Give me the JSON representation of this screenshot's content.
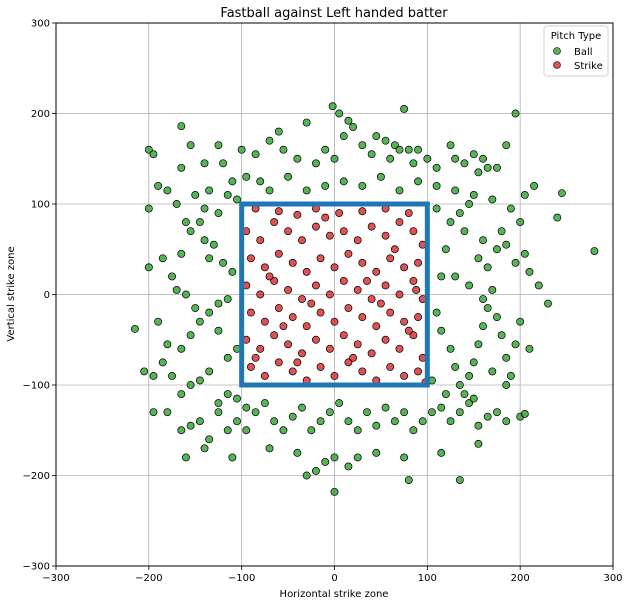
{
  "chart_data": {
    "type": "scatter",
    "title": "Fastball against Left handed batter",
    "xlabel": "Horizontal strike zone",
    "ylabel": "Vertical strike zone",
    "xlim": [
      -300,
      300
    ],
    "ylim": [
      -300,
      300
    ],
    "xticks": [
      -300,
      -200,
      -100,
      0,
      100,
      200,
      300
    ],
    "yticks": [
      -300,
      -200,
      -100,
      0,
      100,
      200,
      300
    ],
    "grid": true,
    "legend": {
      "title": "Pitch Type",
      "placement": "top-right"
    },
    "strike_zone": {
      "x": [
        -100,
        100
      ],
      "y": [
        -100,
        100
      ],
      "color": "#1f77b4"
    },
    "series": [
      {
        "name": "Ball",
        "color": "#2ca02c",
        "points": [
          [
            -200,
            160
          ],
          [
            -195,
            155
          ],
          [
            -165,
            186
          ],
          [
            -155,
            165
          ],
          [
            -165,
            140
          ],
          [
            -140,
            145
          ],
          [
            -120,
            145
          ],
          [
            -125,
            165
          ],
          [
            -100,
            160
          ],
          [
            -85,
            155
          ],
          [
            -70,
            170
          ],
          [
            -55,
            160
          ],
          [
            -40,
            150
          ],
          [
            -20,
            145
          ],
          [
            -10,
            160
          ],
          [
            0,
            150
          ],
          [
            5,
            200
          ],
          [
            10,
            175
          ],
          [
            20,
            185
          ],
          [
            30,
            165
          ],
          [
            40,
            155
          ],
          [
            45,
            175
          ],
          [
            55,
            170
          ],
          [
            65,
            165
          ],
          [
            70,
            160
          ],
          [
            75,
            205
          ],
          [
            80,
            160
          ],
          [
            85,
            145
          ],
          [
            90,
            160
          ],
          [
            100,
            150
          ],
          [
            110,
            140
          ],
          [
            125,
            165
          ],
          [
            130,
            150
          ],
          [
            140,
            145
          ],
          [
            150,
            155
          ],
          [
            155,
            135
          ],
          [
            160,
            150
          ],
          [
            165,
            140
          ],
          [
            175,
            140
          ],
          [
            185,
            165
          ],
          [
            195,
            200
          ],
          [
            -30,
            190
          ],
          [
            -60,
            180
          ],
          [
            -2,
            208
          ],
          [
            15,
            192
          ],
          [
            60,
            150
          ],
          [
            -150,
            110
          ],
          [
            -140,
            95
          ],
          [
            -125,
            90
          ],
          [
            -115,
            110
          ],
          [
            -105,
            105
          ],
          [
            -160,
            80
          ],
          [
            -180,
            115
          ],
          [
            -190,
            120
          ],
          [
            -170,
            100
          ],
          [
            -135,
            115
          ],
          [
            -200,
            95
          ],
          [
            -110,
            125
          ],
          [
            -95,
            130
          ],
          [
            -80,
            125
          ],
          [
            -70,
            115
          ],
          [
            -50,
            130
          ],
          [
            -30,
            115
          ],
          [
            -10,
            120
          ],
          [
            10,
            125
          ],
          [
            30,
            120
          ],
          [
            50,
            130
          ],
          [
            70,
            115
          ],
          [
            90,
            125
          ],
          [
            110,
            120
          ],
          [
            130,
            115
          ],
          [
            150,
            110
          ],
          [
            170,
            105
          ],
          [
            190,
            95
          ],
          [
            205,
            110
          ],
          [
            215,
            120
          ],
          [
            245,
            112
          ],
          [
            240,
            85
          ],
          [
            200,
            80
          ],
          [
            180,
            70
          ],
          [
            160,
            60
          ],
          [
            140,
            70
          ],
          [
            120,
            50
          ],
          [
            110,
            95
          ],
          [
            115,
            20
          ],
          [
            125,
            80
          ],
          [
            135,
            90
          ],
          [
            145,
            100
          ],
          [
            155,
            40
          ],
          [
            165,
            30
          ],
          [
            175,
            50
          ],
          [
            185,
            55
          ],
          [
            195,
            35
          ],
          [
            205,
            45
          ],
          [
            210,
            25
          ],
          [
            220,
            10
          ],
          [
            230,
            -10
          ],
          [
            280,
            48
          ],
          [
            -215,
            -38
          ],
          [
            -205,
            -85
          ],
          [
            -195,
            -90
          ],
          [
            -185,
            -75
          ],
          [
            -175,
            -90
          ],
          [
            -165,
            -60
          ],
          [
            -155,
            -45
          ],
          [
            -145,
            -30
          ],
          [
            -135,
            -20
          ],
          [
            -125,
            -10
          ],
          [
            -115,
            -5
          ],
          [
            -175,
            20
          ],
          [
            -185,
            40
          ],
          [
            -190,
            -30
          ],
          [
            -170,
            5
          ],
          [
            -160,
            0
          ],
          [
            -150,
            -15
          ],
          [
            -140,
            60
          ],
          [
            -130,
            55
          ],
          [
            -120,
            35
          ],
          [
            -110,
            25
          ],
          [
            -165,
            45
          ],
          [
            -155,
            70
          ],
          [
            -145,
            80
          ],
          [
            -135,
            40
          ],
          [
            -125,
            -40
          ],
          [
            -115,
            -70
          ],
          [
            -105,
            -60
          ],
          [
            -200,
            30
          ],
          [
            -180,
            -55
          ],
          [
            -165,
            -110
          ],
          [
            -155,
            -100
          ],
          [
            -145,
            -95
          ],
          [
            -135,
            -85
          ],
          [
            -125,
            -120
          ],
          [
            -115,
            -110
          ],
          [
            -105,
            -115
          ],
          [
            -95,
            -125
          ],
          [
            -195,
            -130
          ],
          [
            -180,
            -130
          ],
          [
            -165,
            -150
          ],
          [
            -155,
            -145
          ],
          [
            -145,
            -140
          ],
          [
            -135,
            -160
          ],
          [
            -125,
            -130
          ],
          [
            -115,
            -150
          ],
          [
            -105,
            -140
          ],
          [
            -95,
            -150
          ],
          [
            -85,
            -130
          ],
          [
            -75,
            -120
          ],
          [
            -65,
            -140
          ],
          [
            -55,
            -150
          ],
          [
            -45,
            -135
          ],
          [
            -35,
            -125
          ],
          [
            -25,
            -150
          ],
          [
            -15,
            -140
          ],
          [
            -5,
            -130
          ],
          [
            5,
            -120
          ],
          [
            15,
            -140
          ],
          [
            25,
            -150
          ],
          [
            35,
            -130
          ],
          [
            45,
            -145
          ],
          [
            55,
            -125
          ],
          [
            65,
            -140
          ],
          [
            75,
            -130
          ],
          [
            85,
            -150
          ],
          [
            95,
            -140
          ],
          [
            105,
            -130
          ],
          [
            115,
            -125
          ],
          [
            125,
            -140
          ],
          [
            135,
            -130
          ],
          [
            145,
            -120
          ],
          [
            155,
            -145
          ],
          [
            165,
            -135
          ],
          [
            175,
            -130
          ],
          [
            185,
            -140
          ],
          [
            200,
            -135
          ],
          [
            205,
            -132
          ],
          [
            -160,
            -180
          ],
          [
            -140,
            -170
          ],
          [
            -110,
            -180
          ],
          [
            -70,
            -170
          ],
          [
            -40,
            -175
          ],
          [
            -30,
            -200
          ],
          [
            -20,
            -195
          ],
          [
            -10,
            -185
          ],
          [
            0,
            -180
          ],
          [
            0,
            -218
          ],
          [
            15,
            -190
          ],
          [
            25,
            -180
          ],
          [
            45,
            -175
          ],
          [
            75,
            -180
          ],
          [
            80,
            -205
          ],
          [
            115,
            -175
          ],
          [
            135,
            -205
          ],
          [
            155,
            -165
          ],
          [
            110,
            -20
          ],
          [
            115,
            -40
          ],
          [
            125,
            -60
          ],
          [
            130,
            -80
          ],
          [
            135,
            -100
          ],
          [
            140,
            -110
          ],
          [
            145,
            -90
          ],
          [
            150,
            -75
          ],
          [
            155,
            -55
          ],
          [
            160,
            -35
          ],
          [
            165,
            -15
          ],
          [
            170,
            5
          ],
          [
            175,
            -25
          ],
          [
            180,
            -45
          ],
          [
            185,
            -70
          ],
          [
            190,
            -90
          ],
          [
            195,
            -55
          ],
          [
            200,
            -30
          ],
          [
            210,
            -60
          ],
          [
            185,
            -100
          ],
          [
            170,
            -85
          ],
          [
            150,
            -115
          ],
          [
            120,
            -110
          ],
          [
            105,
            -95
          ],
          [
            130,
            20
          ],
          [
            145,
            10
          ],
          [
            160,
            -5
          ]
        ]
      },
      {
        "name": "Strike",
        "color": "#d62728",
        "points": [
          [
            -95,
            70
          ],
          [
            -80,
            60
          ],
          [
            -65,
            80
          ],
          [
            -50,
            70
          ],
          [
            -35,
            60
          ],
          [
            -20,
            75
          ],
          [
            -5,
            65
          ],
          [
            10,
            70
          ],
          [
            25,
            60
          ],
          [
            40,
            75
          ],
          [
            55,
            65
          ],
          [
            70,
            80
          ],
          [
            85,
            70
          ],
          [
            95,
            55
          ],
          [
            -90,
            40
          ],
          [
            -75,
            30
          ],
          [
            -60,
            45
          ],
          [
            -45,
            35
          ],
          [
            -30,
            25
          ],
          [
            -15,
            40
          ],
          [
            0,
            30
          ],
          [
            15,
            45
          ],
          [
            30,
            35
          ],
          [
            45,
            25
          ],
          [
            60,
            40
          ],
          [
            75,
            30
          ],
          [
            90,
            35
          ],
          [
            -95,
            10
          ],
          [
            -80,
            0
          ],
          [
            -65,
            15
          ],
          [
            -50,
            5
          ],
          [
            -35,
            -5
          ],
          [
            -20,
            10
          ],
          [
            -5,
            0
          ],
          [
            10,
            15
          ],
          [
            25,
            5
          ],
          [
            40,
            -5
          ],
          [
            55,
            10
          ],
          [
            70,
            0
          ],
          [
            85,
            15
          ],
          [
            95,
            -5
          ],
          [
            -90,
            -20
          ],
          [
            -75,
            -30
          ],
          [
            -60,
            -15
          ],
          [
            -45,
            -25
          ],
          [
            -30,
            -35
          ],
          [
            -15,
            -20
          ],
          [
            0,
            -30
          ],
          [
            15,
            -15
          ],
          [
            30,
            -25
          ],
          [
            45,
            -35
          ],
          [
            60,
            -20
          ],
          [
            75,
            -30
          ],
          [
            90,
            -25
          ],
          [
            -95,
            -50
          ],
          [
            -80,
            -60
          ],
          [
            -65,
            -45
          ],
          [
            -50,
            -55
          ],
          [
            -35,
            -65
          ],
          [
            -20,
            -50
          ],
          [
            -5,
            -60
          ],
          [
            10,
            -45
          ],
          [
            25,
            -55
          ],
          [
            40,
            -65
          ],
          [
            55,
            -50
          ],
          [
            70,
            -60
          ],
          [
            85,
            -45
          ],
          [
            95,
            -70
          ],
          [
            -90,
            -80
          ],
          [
            -75,
            -90
          ],
          [
            -60,
            -75
          ],
          [
            -45,
            -85
          ],
          [
            -30,
            -95
          ],
          [
            -15,
            -80
          ],
          [
            0,
            -90
          ],
          [
            15,
            -75
          ],
          [
            30,
            -85
          ],
          [
            45,
            -95
          ],
          [
            60,
            -80
          ],
          [
            75,
            -90
          ],
          [
            90,
            -85
          ],
          [
            98,
            -97
          ],
          [
            -85,
            95
          ],
          [
            -60,
            92
          ],
          [
            -40,
            88
          ],
          [
            -20,
            95
          ],
          [
            5,
            90
          ],
          [
            30,
            92
          ],
          [
            55,
            95
          ],
          [
            80,
            90
          ],
          [
            -70,
            20
          ],
          [
            -25,
            -10
          ],
          [
            20,
            -70
          ],
          [
            65,
            50
          ],
          [
            -55,
            -35
          ],
          [
            35,
            15
          ],
          [
            80,
            -40
          ],
          [
            -10,
            85
          ],
          [
            50,
            -10
          ],
          [
            -85,
            -70
          ],
          [
            88,
            5
          ],
          [
            -40,
            -75
          ]
        ]
      }
    ]
  }
}
